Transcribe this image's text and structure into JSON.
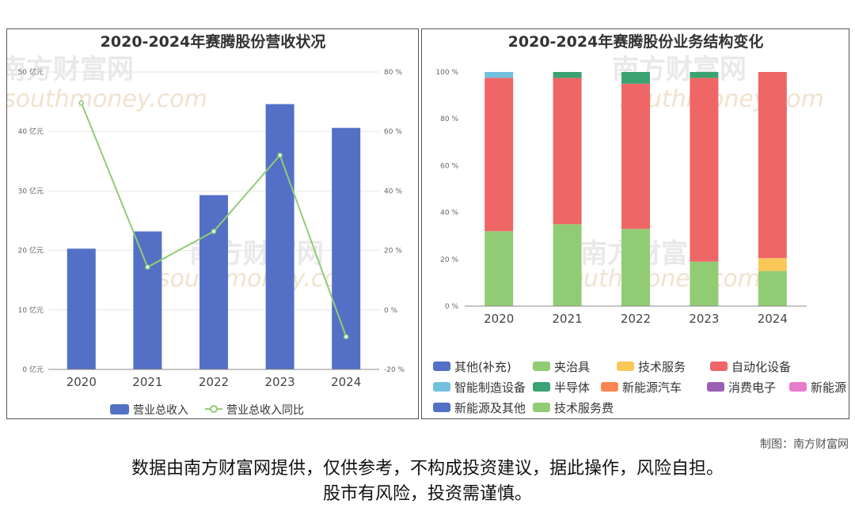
{
  "chart_data": [
    {
      "type": "bar",
      "title": "2020-2024年赛腾股份营收状况",
      "categories": [
        "2020",
        "2021",
        "2022",
        "2023",
        "2024"
      ],
      "series": [
        {
          "name": "营业总收入",
          "type": "bar",
          "axis": "left",
          "values": [
            20.3,
            23.2,
            29.3,
            44.6,
            40.6
          ],
          "color": "#5470c6"
        },
        {
          "name": "营业总收入同比",
          "type": "line",
          "axis": "right",
          "values": [
            69.6,
            14.4,
            26.4,
            52.0,
            -9.0
          ],
          "color": "#91cc75"
        }
      ],
      "y_left": {
        "min": 0,
        "max": 50,
        "ticks": [
          "0 亿元",
          "10 亿元",
          "20 亿元",
          "30 亿元",
          "40 亿元",
          "50 亿元"
        ]
      },
      "y_right": {
        "min": -20,
        "max": 80,
        "ticks": [
          "-20 %",
          "0 %",
          "20 %",
          "40 %",
          "60 %",
          "80 %"
        ]
      },
      "grid": true,
      "legend": "bottom"
    },
    {
      "type": "bar",
      "stacked": true,
      "title": "2020-2024年赛腾股份业务结构变化",
      "categories": [
        "2020",
        "2021",
        "2022",
        "2023",
        "2024"
      ],
      "y": {
        "min": 0,
        "max": 100,
        "ticks": [
          "0 %",
          "20 %",
          "40 %",
          "60 %",
          "80 %",
          "100 %"
        ]
      },
      "series": [
        {
          "name": "其他(补充)",
          "color": "#5470c6",
          "values": [
            0,
            0,
            0,
            0,
            0
          ]
        },
        {
          "name": "夹治具",
          "color": "#91cc75",
          "values": [
            32,
            35,
            33,
            19,
            15
          ]
        },
        {
          "name": "技术服务",
          "color": "#fac858",
          "values": [
            0,
            0,
            0,
            0,
            5.5
          ]
        },
        {
          "name": "自动化设备",
          "color": "#ee6666",
          "values": [
            65.5,
            62.5,
            62,
            78.5,
            79.5
          ]
        },
        {
          "name": "智能制造设备",
          "color": "#73c0de",
          "values": [
            2.5,
            0,
            0,
            0,
            0
          ]
        },
        {
          "name": "半导体",
          "color": "#3ba272",
          "values": [
            0,
            2.5,
            5,
            2.5,
            0
          ]
        },
        {
          "name": "新能源汽车",
          "color": "#fc8452",
          "values": [
            0,
            0,
            0,
            0,
            0
          ]
        },
        {
          "name": "消费电子",
          "color": "#9a60b4",
          "values": [
            0,
            0,
            0,
            0,
            0
          ]
        },
        {
          "name": "新能源",
          "color": "#ea7ccc",
          "values": [
            0,
            0,
            0,
            0,
            0
          ]
        },
        {
          "name": "新能源及其他",
          "color": "#5470c6",
          "values": [
            0,
            0,
            0,
            0,
            0
          ]
        },
        {
          "name": "技术服务费",
          "color": "#91cc75",
          "values": [
            0,
            0,
            0,
            0,
            0
          ]
        }
      ],
      "grid": false,
      "legend": "bottom"
    }
  ],
  "watermark": {
    "cn": "南方财富网",
    "en": "southmoney.com"
  },
  "credit": "制图：南方财富网",
  "disclaimer": [
    "数据由南方财富网提供，仅供参考，不构成投资建议，据此操作，风险自担。",
    "股市有风险，投资需谨慎。"
  ]
}
